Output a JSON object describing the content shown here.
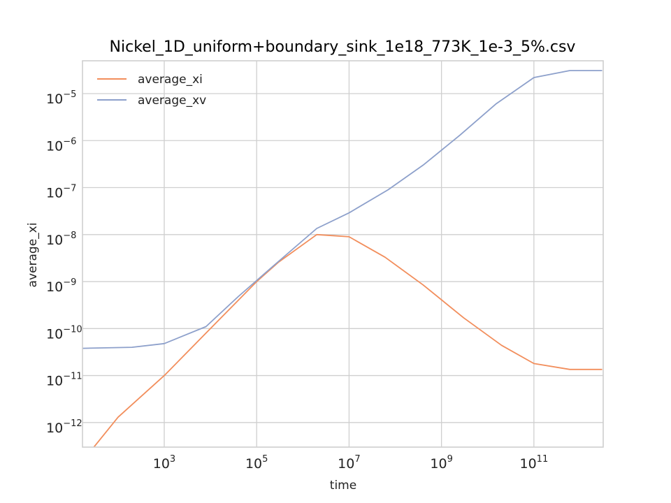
{
  "chart_data": {
    "type": "line",
    "title": "Nickel_1D_uniform+boundary_sink_1e18_773K_1e-3_5%.csv",
    "xlabel": "time",
    "ylabel": "average_xi",
    "x_scale": "log",
    "y_scale": "log",
    "xlim": [
      17,
      3160000000000.0
    ],
    "ylim": [
      3e-13,
      5e-05
    ],
    "grid": true,
    "legend_position": "top-left",
    "x_ticks": [
      {
        "base": "10",
        "exp": "3",
        "value": 1000
      },
      {
        "base": "10",
        "exp": "5",
        "value": 100000
      },
      {
        "base": "10",
        "exp": "7",
        "value": 10000000
      },
      {
        "base": "10",
        "exp": "9",
        "value": 1000000000
      },
      {
        "base": "10",
        "exp": "11",
        "value": 100000000000
      }
    ],
    "y_ticks": [
      {
        "base": "10",
        "exp": "−12",
        "value": 1e-12
      },
      {
        "base": "10",
        "exp": "−11",
        "value": 1e-11
      },
      {
        "base": "10",
        "exp": "−10",
        "value": 1e-10
      },
      {
        "base": "10",
        "exp": "−9",
        "value": 1e-09
      },
      {
        "base": "10",
        "exp": "−8",
        "value": 1e-08
      },
      {
        "base": "10",
        "exp": "−7",
        "value": 1e-07
      },
      {
        "base": "10",
        "exp": "−6",
        "value": 1e-06
      },
      {
        "base": "10",
        "exp": "−5",
        "value": 1e-05
      }
    ],
    "series": [
      {
        "name": "average_xi",
        "color": "#f28e5c",
        "x": [
          30,
          100,
          1000,
          10000,
          100000,
          300000,
          2000000,
          10000000,
          60000000,
          400000000,
          3000000000,
          20000000000,
          100000000000,
          600000000000,
          3000000000000
        ],
        "y": [
          3e-13,
          1.3e-12,
          1e-11,
          1e-10,
          1e-09,
          2.6e-09,
          1e-08,
          9e-09,
          3.3e-09,
          8.5e-10,
          1.7e-10,
          4.4e-11,
          1.8e-11,
          1.35e-11,
          1.35e-11
        ]
      },
      {
        "name": "average_xv",
        "color": "#8da0cb",
        "x": [
          17,
          200,
          1000,
          8000,
          40000,
          300000,
          2000000,
          10000000,
          70000000,
          400000000,
          2500000000,
          15000000000,
          100000000000,
          600000000000,
          3000000000000
        ],
        "y": [
          3.8e-11,
          4e-11,
          4.8e-11,
          1.1e-10,
          4.8e-10,
          2.7e-09,
          1.35e-08,
          2.9e-08,
          9e-08,
          3e-07,
          1.3e-06,
          6e-06,
          2.2e-05,
          3.1e-05,
          3.1e-05
        ]
      }
    ]
  }
}
